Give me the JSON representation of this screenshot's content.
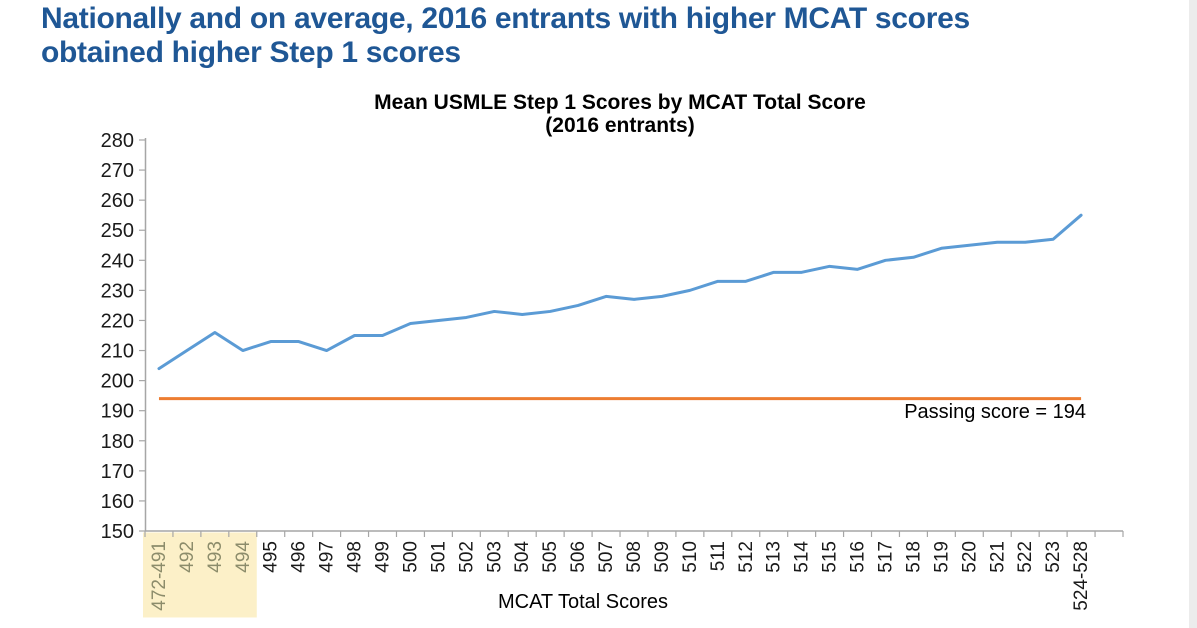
{
  "page_title": {
    "line1": "Nationally and on average, 2016 entrants with higher MCAT scores",
    "line2": "obtained higher Step 1 scores"
  },
  "chart": {
    "title_line1": "Mean USMLE Step 1 Scores by MCAT Total Score",
    "title_line2": "(2016 entrants)",
    "xlabel": "MCAT Total Scores",
    "passing_label": "Passing score = 194"
  },
  "chart_data": {
    "type": "line",
    "title": "Mean USMLE Step 1 Scores by MCAT Total Score (2016 entrants)",
    "xlabel": "MCAT Total Scores",
    "ylabel": "",
    "ylim": [
      150,
      280
    ],
    "ytick_step": 10,
    "grid": false,
    "categories": [
      "472-491",
      "492",
      "493",
      "494",
      "495",
      "496",
      "497",
      "498",
      "499",
      "500",
      "501",
      "502",
      "503",
      "504",
      "505",
      "506",
      "507",
      "508",
      "509",
      "510",
      "511",
      "512",
      "513",
      "514",
      "515",
      "516",
      "517",
      "518",
      "519",
      "520",
      "521",
      "522",
      "523",
      "524-528"
    ],
    "series": [
      {
        "name": "Mean USMLE Step 1 score",
        "color": "#5B9BD5",
        "values": [
          204,
          210,
          216,
          210,
          213,
          213,
          210,
          215,
          215,
          219,
          220,
          221,
          223,
          222,
          223,
          225,
          228,
          227,
          228,
          230,
          233,
          233,
          236,
          236,
          238,
          237,
          240,
          241,
          244,
          245,
          246,
          246,
          247,
          255
        ]
      }
    ],
    "reference_line": {
      "value": 194,
      "label": "Passing score = 194",
      "color": "#ED7D31"
    },
    "highlighted_categories": [
      "472-491",
      "492",
      "493",
      "494"
    ],
    "highlight_color": "#FCF0C8",
    "highlight_text_color": "#8C8C6B",
    "axis_color": "#A6A6A6",
    "title_color": "#1F5795"
  }
}
